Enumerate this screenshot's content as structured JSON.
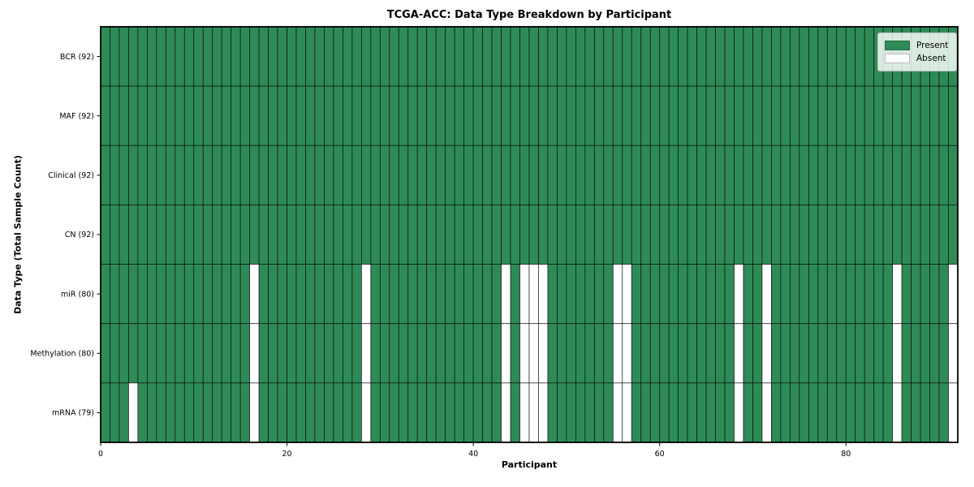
{
  "chart_data": {
    "type": "heatmap",
    "title": "TCGA-ACC: Data Type Breakdown by Participant",
    "xlabel": "Participant",
    "ylabel": "Data Type (Total Sample Count)",
    "n_participants": 92,
    "x_ticks": [
      0,
      20,
      40,
      60,
      80
    ],
    "legend": [
      {
        "label": "Present",
        "color": "#2e8b57"
      },
      {
        "label": "Absent",
        "color": "#ffffff"
      }
    ],
    "colors": {
      "present": "#2e8b57",
      "absent": "#ffffff",
      "cell_edge": "rgba(0,0,0,0.72)",
      "plot_border": "#000000"
    },
    "rows": [
      {
        "label": "BCR (92)",
        "present_count": 92,
        "absent_participants": []
      },
      {
        "label": "MAF (92)",
        "present_count": 92,
        "absent_participants": []
      },
      {
        "label": "Clinical (92)",
        "present_count": 92,
        "absent_participants": []
      },
      {
        "label": "CN (92)",
        "present_count": 92,
        "absent_participants": []
      },
      {
        "label": "miR (80)",
        "present_count": 80,
        "absent_participants": [
          16,
          28,
          43,
          45,
          46,
          47,
          55,
          56,
          68,
          71,
          85,
          91
        ]
      },
      {
        "label": "Methylation (80)",
        "present_count": 80,
        "absent_participants": [
          16,
          28,
          43,
          45,
          46,
          47,
          55,
          56,
          68,
          71,
          85,
          91
        ]
      },
      {
        "label": "mRNA (79)",
        "present_count": 79,
        "absent_participants": [
          3,
          16,
          28,
          43,
          45,
          46,
          47,
          55,
          56,
          68,
          71,
          85,
          91
        ]
      }
    ]
  }
}
